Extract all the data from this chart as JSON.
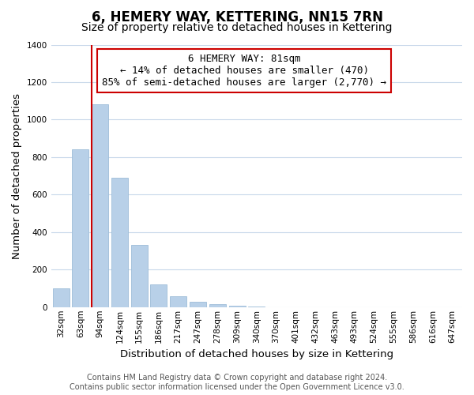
{
  "title": "6, HEMERY WAY, KETTERING, NN15 7RN",
  "subtitle": "Size of property relative to detached houses in Kettering",
  "xlabel": "Distribution of detached houses by size in Kettering",
  "ylabel": "Number of detached properties",
  "categories": [
    "32sqm",
    "63sqm",
    "94sqm",
    "124sqm",
    "155sqm",
    "186sqm",
    "217sqm",
    "247sqm",
    "278sqm",
    "309sqm",
    "340sqm",
    "370sqm",
    "401sqm",
    "432sqm",
    "463sqm",
    "493sqm",
    "524sqm",
    "555sqm",
    "586sqm",
    "616sqm",
    "647sqm"
  ],
  "values": [
    100,
    840,
    1080,
    690,
    330,
    120,
    60,
    30,
    15,
    8,
    3,
    0,
    0,
    0,
    0,
    0,
    0,
    0,
    0,
    0,
    0
  ],
  "bar_color": "#b8d0e8",
  "bar_edge_color": "#9dbdd8",
  "vline_color": "#cc0000",
  "vline_pos": 1.575,
  "annotation_line1": "6 HEMERY WAY: 81sqm",
  "annotation_line2": "← 14% of detached houses are smaller (470)",
  "annotation_line3": "85% of semi-detached houses are larger (2,770) →",
  "annotation_box_color": "#ffffff",
  "annotation_box_edge": "#cc0000",
  "ylim": [
    0,
    1400
  ],
  "yticks": [
    0,
    200,
    400,
    600,
    800,
    1000,
    1200,
    1400
  ],
  "footer_line1": "Contains HM Land Registry data © Crown copyright and database right 2024.",
  "footer_line2": "Contains public sector information licensed under the Open Government Licence v3.0.",
  "bg_color": "#ffffff",
  "grid_color": "#c8d8ea",
  "title_fontsize": 12,
  "subtitle_fontsize": 10,
  "axis_label_fontsize": 9.5,
  "tick_fontsize": 7.5,
  "annotation_fontsize": 9,
  "footer_fontsize": 7
}
